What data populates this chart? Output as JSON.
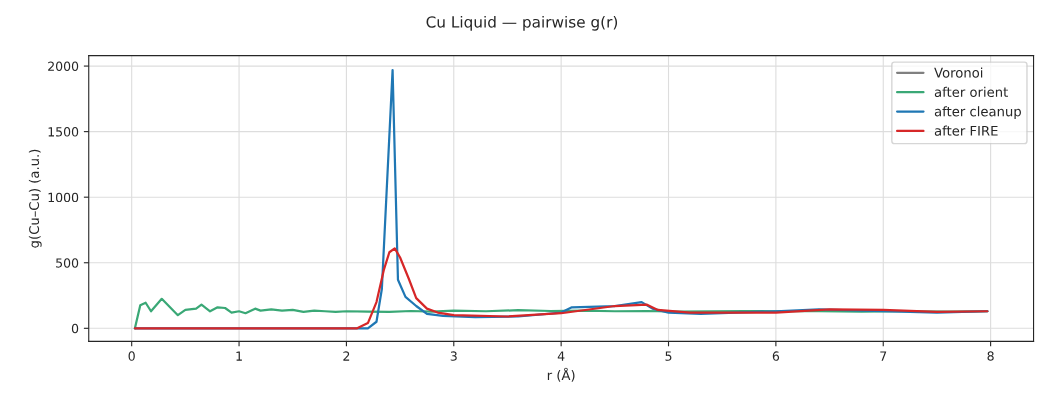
{
  "chart_data": {
    "type": "line",
    "title": "Cu Liquid — pairwise g(r)",
    "xlabel": "r (Å)",
    "ylabel": "g(Cu–Cu) (a.u.)",
    "xlim": [
      -0.4,
      8.4
    ],
    "ylim": [
      -100,
      2080
    ],
    "xticks": [
      0,
      1,
      2,
      3,
      4,
      5,
      6,
      7,
      8
    ],
    "yticks": [
      0,
      500,
      1000,
      1500,
      2000
    ],
    "grid": true,
    "legend": "top right",
    "marker": "none",
    "line_style": "solid",
    "series": [
      {
        "name": "Voronoi",
        "color": "#808080"
      },
      {
        "name": "after orient",
        "color": "#3aa876",
        "x": [
          0.03,
          0.08,
          0.13,
          0.18,
          0.28,
          0.43,
          0.5,
          0.6,
          0.65,
          0.73,
          0.8,
          0.87,
          0.93,
          1.0,
          1.06,
          1.15,
          1.2,
          1.3,
          1.4,
          1.5,
          1.6,
          1.7,
          1.8,
          1.9,
          2.0,
          2.2,
          2.4,
          2.6,
          2.8,
          3.0,
          3.3,
          3.6,
          3.9,
          4.2,
          4.5,
          4.8,
          5.1,
          5.4,
          5.7,
          6.0,
          6.4,
          6.8,
          7.2,
          7.6,
          7.97
        ],
        "values": [
          0,
          175,
          195,
          130,
          225,
          100,
          140,
          150,
          180,
          130,
          160,
          155,
          120,
          130,
          115,
          150,
          135,
          145,
          135,
          140,
          125,
          135,
          130,
          125,
          130,
          128,
          125,
          132,
          128,
          135,
          130,
          138,
          132,
          135,
          130,
          132,
          128,
          130,
          132,
          130,
          130,
          128,
          130,
          128,
          130
        ]
      },
      {
        "name": "after cleanup",
        "color": "#1f77b4",
        "x": [
          0.03,
          2.2,
          2.28,
          2.33,
          2.43,
          2.48,
          2.55,
          2.65,
          2.75,
          2.9,
          3.2,
          3.6,
          4.0,
          4.1,
          4.5,
          4.75,
          4.85,
          5.0,
          5.3,
          6.0,
          6.4,
          7.0,
          7.5,
          7.97
        ],
        "values": [
          0,
          0,
          50,
          300,
          1970,
          370,
          240,
          170,
          110,
          95,
          85,
          90,
          120,
          160,
          170,
          200,
          150,
          120,
          110,
          130,
          145,
          130,
          120,
          130
        ]
      },
      {
        "name": "after FIRE",
        "color": "#d62728",
        "x": [
          0.03,
          2.1,
          2.2,
          2.28,
          2.35,
          2.4,
          2.45,
          2.5,
          2.58,
          2.65,
          2.75,
          2.85,
          3.0,
          3.5,
          4.0,
          4.5,
          4.8,
          4.9,
          5.2,
          6.0,
          6.5,
          7.0,
          7.5,
          7.97
        ],
        "values": [
          0,
          0,
          40,
          200,
          450,
          580,
          610,
          540,
          380,
          230,
          150,
          120,
          100,
          90,
          115,
          170,
          180,
          140,
          120,
          120,
          145,
          140,
          125,
          130
        ]
      }
    ]
  }
}
